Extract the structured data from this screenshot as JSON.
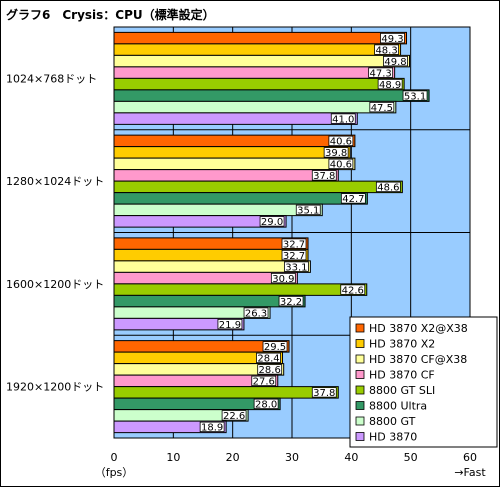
{
  "chart_data": {
    "type": "bar",
    "orientation": "horizontal",
    "title": "グラフ6　Crysis：CPU（標準設定）",
    "categories": [
      "1024×768ドット",
      "1280×1024ドット",
      "1600×1200ドット",
      "1920×1200ドット"
    ],
    "xlim": [
      0,
      60
    ],
    "xticks": [
      0,
      10,
      20,
      30,
      40,
      50,
      60
    ],
    "xlabel_left": "（fps）",
    "xlabel_right": "→Fast",
    "grid": true,
    "legend_position": "bottom-right",
    "plot_background": "#99CCFF",
    "series": [
      {
        "name": "HD 3870 X2@X38",
        "color": "#FF6600",
        "values": [
          49.3,
          40.6,
          32.7,
          29.5
        ]
      },
      {
        "name": "HD 3870 X2",
        "color": "#FFCC00",
        "values": [
          48.3,
          39.8,
          32.7,
          28.4
        ]
      },
      {
        "name": "HD 3870 CF@X38",
        "color": "#FFFF99",
        "values": [
          49.8,
          40.6,
          33.1,
          28.6
        ]
      },
      {
        "name": "HD 3870 CF",
        "color": "#FF99CC",
        "values": [
          47.3,
          37.8,
          30.9,
          27.6
        ]
      },
      {
        "name": "8800 GT SLI",
        "color": "#99CC00",
        "values": [
          48.9,
          48.6,
          42.6,
          37.8
        ]
      },
      {
        "name": "8800 Ultra",
        "color": "#339966",
        "values": [
          53.1,
          42.7,
          32.2,
          28.0
        ]
      },
      {
        "name": "8800 GT",
        "color": "#CCFFCC",
        "values": [
          47.5,
          35.1,
          26.3,
          22.6
        ]
      },
      {
        "name": "HD 3870",
        "color": "#CC99FF",
        "values": [
          41.0,
          29.0,
          21.9,
          18.9
        ]
      }
    ]
  }
}
